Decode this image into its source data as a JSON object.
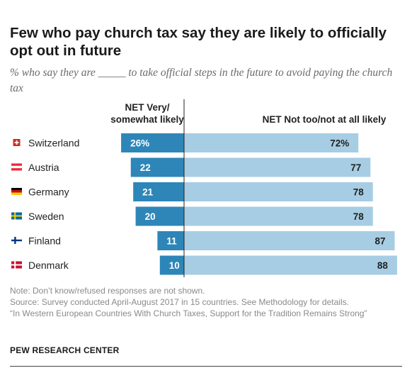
{
  "title": "Few who pay church tax say they are likely to officially opt out in future",
  "subtitle": "% who say they are _____ to take official steps in the future to avoid paying the church tax",
  "chart_data": {
    "type": "bar",
    "orientation": "horizontal-diverging",
    "column_headers": {
      "left": [
        "NET Very/",
        "somewhat likely"
      ],
      "right": "NET Not too/not at all likely"
    },
    "categories": [
      "Switzerland",
      "Austria",
      "Germany",
      "Sweden",
      "Finland",
      "Denmark"
    ],
    "series": [
      {
        "name": "NET Very/somewhat likely",
        "values": [
          26,
          22,
          21,
          20,
          11,
          10
        ],
        "color": "#2e86b8",
        "labels": [
          "26%",
          "22",
          "21",
          "20",
          "11",
          "10"
        ]
      },
      {
        "name": "NET Not too/not at all likely",
        "values": [
          72,
          77,
          78,
          78,
          87,
          88
        ],
        "color": "#a6cde3",
        "labels": [
          "72%",
          "77",
          "78",
          "78",
          "87",
          "88"
        ]
      }
    ],
    "flags": [
      "switzerland-flag-icon",
      "austria-flag-icon",
      "germany-flag-icon",
      "sweden-flag-icon",
      "finland-flag-icon",
      "denmark-flag-icon"
    ]
  },
  "notes": {
    "note": "Note: Don’t know/refused responses are not shown.",
    "source": "Source: Survey conducted April-August 2017 in 15 countries. See Methodology for details.",
    "report": "“In Western European Countries With Church Taxes, Support for the Tradition Remains Strong”"
  },
  "brand": "PEW RESEARCH CENTER"
}
